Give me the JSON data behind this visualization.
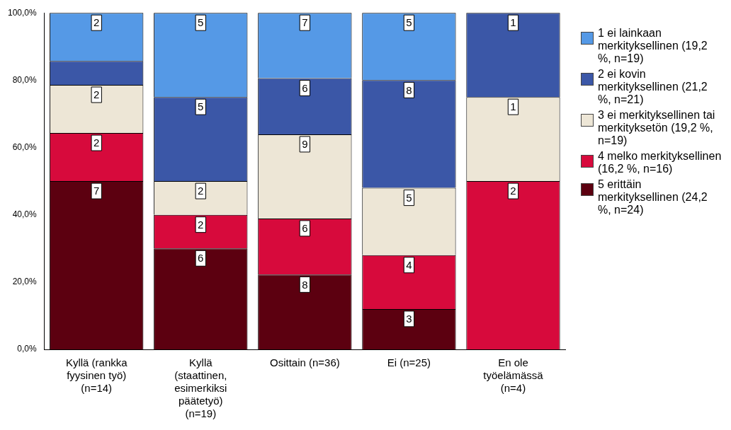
{
  "chart_data": {
    "type": "bar",
    "stacked": true,
    "categories": [
      "Kyllä (rankka fyysinen työ) (n=14)",
      "Kyllä (staattinen, esimerkiksi päätetyö) (n=19)",
      "Osittain (n=36)",
      "Ei (n=25)",
      "En ole työelämässä (n=4)"
    ],
    "ylim": [
      0,
      100
    ],
    "yticks": [
      {
        "value": 0,
        "label": "0,0%"
      },
      {
        "value": 20,
        "label": "20,0%"
      },
      {
        "value": 40,
        "label": "40,0%"
      },
      {
        "value": 60,
        "label": "60,0%"
      },
      {
        "value": 80,
        "label": "80,0%"
      },
      {
        "value": 100,
        "label": "100,0%"
      }
    ],
    "grid": false,
    "legend": "right",
    "series": [
      {
        "name": "5 erittäin merkityksellinen (24,2 %, n=24)",
        "color": "#5c0010",
        "values": [
          50,
          30,
          22.2,
          12,
          0
        ]
      },
      {
        "name": "4 melko merkityksellinen (16,2 %, n=16)",
        "color": "#d70a3c",
        "values": [
          14.3,
          10,
          16.7,
          16,
          50
        ]
      },
      {
        "name": "3 ei merkityksellinen tai merkityksetön (19,2 %, n=19)",
        "color": "#ede6d6",
        "values": [
          14.3,
          10,
          25,
          20,
          25
        ]
      },
      {
        "name": "2 ei kovin merkityksellinen (21,2 %, n=21)",
        "color": "#3b57a7",
        "values": [
          7.1,
          25,
          16.7,
          32,
          25
        ]
      },
      {
        "name": "1 ei lainkaan merkityksellinen (19,2 %, n=19)",
        "color": "#5599e6",
        "values": [
          14.3,
          25,
          19.4,
          20,
          0
        ]
      }
    ],
    "annotations": [
      {
        "text": "7",
        "x": "Kyllä (rankka fyysinen työ) (n=14)",
        "y": 50
      },
      {
        "text": "2",
        "x": "Kyllä (rankka fyysinen työ) (n=14)",
        "y": 64.3
      },
      {
        "text": "2",
        "x": "Kyllä (rankka fyysinen työ) (n=14)",
        "y": 78.6
      },
      {
        "text": "2",
        "x": "Kyllä (rankka fyysinen työ) (n=14)",
        "y": 100
      },
      {
        "text": "6",
        "x": "Kyllä (staattinen, esimerkiksi päätetyö) (n=19)",
        "y": 30
      },
      {
        "text": "2",
        "x": "Kyllä (staattinen, esimerkiksi päätetyö) (n=19)",
        "y": 40
      },
      {
        "text": "2",
        "x": "Kyllä (staattinen, esimerkiksi päätetyö) (n=19)",
        "y": 50
      },
      {
        "text": "5",
        "x": "Kyllä (staattinen, esimerkiksi päätetyö) (n=19)",
        "y": 75
      },
      {
        "text": "5",
        "x": "Kyllä (staattinen, esimerkiksi päätetyö) (n=19)",
        "y": 100
      },
      {
        "text": "8",
        "x": "Osittain (n=36)",
        "y": 22.2
      },
      {
        "text": "6",
        "x": "Osittain (n=36)",
        "y": 38.9
      },
      {
        "text": "9",
        "x": "Osittain (n=36)",
        "y": 63.9
      },
      {
        "text": "6",
        "x": "Osittain (n=36)",
        "y": 80.6
      },
      {
        "text": "7",
        "x": "Osittain (n=36)",
        "y": 100
      },
      {
        "text": "3",
        "x": "Ei (n=25)",
        "y": 12
      },
      {
        "text": "4",
        "x": "Ei (n=25)",
        "y": 28
      },
      {
        "text": "5",
        "x": "Ei (n=25)",
        "y": 48
      },
      {
        "text": "8",
        "x": "Ei (n=25)",
        "y": 80
      },
      {
        "text": "5",
        "x": "Ei (n=25)",
        "y": 100
      },
      {
        "text": "2",
        "x": "En ole työelämässä (n=4)",
        "y": 50
      },
      {
        "text": "1",
        "x": "En ole työelämässä (n=4)",
        "y": 75
      },
      {
        "text": "1",
        "x": "En ole työelämässä (n=4)",
        "y": 100
      }
    ]
  }
}
